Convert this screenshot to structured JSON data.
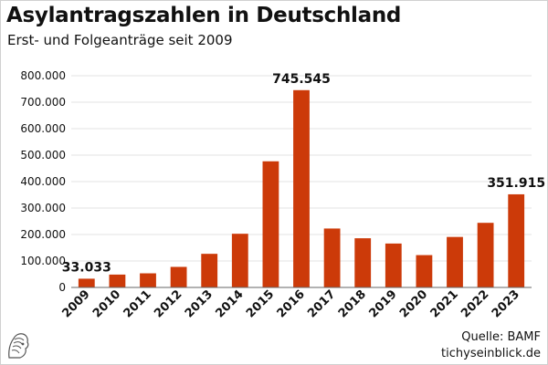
{
  "header": {
    "title": "Asylantragszahlen in Deutschland",
    "subtitle": "Erst- und Folgeanträge seit 2009"
  },
  "footer": {
    "source": "Quelle: BAMF",
    "site": "tichyseinblick.de",
    "logo_icon": "owl-head-logo-icon"
  },
  "colors": {
    "bar": "#cc3a09",
    "grid": "#e3e3e3",
    "axis": "#666666",
    "text": "#111111"
  },
  "chart_data": {
    "type": "bar",
    "categories": [
      "2009",
      "2010",
      "2011",
      "2012",
      "2013",
      "2014",
      "2015",
      "2016",
      "2017",
      "2018",
      "2019",
      "2020",
      "2021",
      "2022",
      "2023"
    ],
    "values": [
      33033,
      48589,
      53347,
      77651,
      127023,
      202834,
      476649,
      745545,
      222683,
      185853,
      165938,
      122170,
      190816,
      244132,
      351915
    ],
    "data_labels": [
      {
        "index": 0,
        "text": "33.033"
      },
      {
        "index": 7,
        "text": "745.545"
      },
      {
        "index": 14,
        "text": "351.915"
      }
    ],
    "ylim": [
      0,
      800000
    ],
    "yticks": [
      0,
      100000,
      200000,
      300000,
      400000,
      500000,
      600000,
      700000,
      800000
    ],
    "ytick_labels": [
      "0",
      "100.000",
      "200.000",
      "300.000",
      "400.000",
      "500.000",
      "600.000",
      "700.000",
      "800.000"
    ],
    "xlabel": "",
    "ylabel": "",
    "grid": true,
    "legend": "none"
  }
}
